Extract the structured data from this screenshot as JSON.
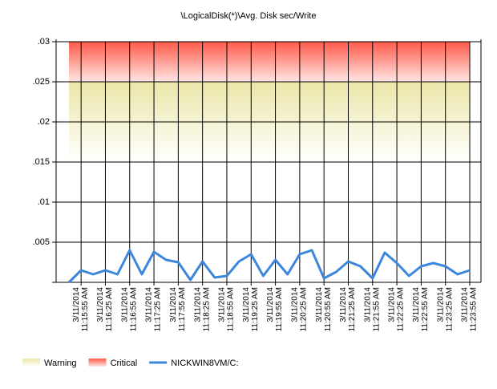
{
  "chart_data": {
    "type": "line",
    "title": "\\LogicalDisk(*)\\Avg. Disk sec/Write",
    "categories": [
      null,
      [
        "3/11/2014",
        "11:15:55 AM"
      ],
      null,
      [
        "3/11/2014",
        "11:16:25 AM"
      ],
      null,
      [
        "3/11/2014",
        "11:16:55 AM"
      ],
      null,
      [
        "3/11/2014",
        "11:17:25 AM"
      ],
      null,
      [
        "3/11/2014",
        "11:17:55 AM"
      ],
      null,
      [
        "3/11/2014",
        "11:18:25 AM"
      ],
      null,
      [
        "3/11/2014",
        "11:18:55 AM"
      ],
      null,
      [
        "3/11/2014",
        "11:19:25 AM"
      ],
      null,
      [
        "3/11/2014",
        "11:19:55 AM"
      ],
      null,
      [
        "3/11/2014",
        "11:20:25 AM"
      ],
      null,
      [
        "3/11/2014",
        "11:20:55 AM"
      ],
      null,
      [
        "3/11/2014",
        "11:21:25 AM"
      ],
      null,
      [
        "3/11/2014",
        "11:21:55 AM"
      ],
      null,
      [
        "3/11/2014",
        "11:22:25 AM"
      ],
      null,
      [
        "3/11/2014",
        "11:22:55 AM"
      ],
      null,
      [
        "3/11/2014",
        "11:23:25 AM"
      ],
      null,
      [
        "3/11/2014",
        "11:23:55 AM"
      ]
    ],
    "series": [
      {
        "name": "NICKWIN8VM/C:",
        "color": "#3c86dc",
        "values": [
          0,
          0.0015,
          0.001,
          0.0015,
          0.001,
          0.004,
          0.001,
          0.0038,
          0.0028,
          0.0025,
          0.0003,
          0.0026,
          0.0006,
          0.0008,
          0.0026,
          0.0035,
          0.0008,
          0.0028,
          0.001,
          0.0035,
          0.004,
          0.0005,
          0.0013,
          0.0026,
          0.002,
          0.0005,
          0.0037,
          0.0024,
          0.0008,
          0.002,
          0.0024,
          0.002,
          0.001,
          0.0015
        ]
      }
    ],
    "bands": [
      {
        "name": "Warning",
        "range": [
          0.015,
          0.025
        ],
        "color": "#ebe6a8"
      },
      {
        "name": "Critical",
        "range": [
          0.025,
          0.03
        ],
        "color": "#ff5a4a"
      }
    ],
    "ylim": [
      0,
      0.03
    ],
    "yticks": [
      {
        "value": 0.005,
        "label": ".005"
      },
      {
        "value": 0.01,
        "label": ".01"
      },
      {
        "value": 0.015,
        "label": ".015"
      },
      {
        "value": 0.02,
        "label": ".02"
      },
      {
        "value": 0.025,
        "label": ".025"
      },
      {
        "value": 0.03,
        "label": ".03"
      }
    ],
    "grid": true
  }
}
